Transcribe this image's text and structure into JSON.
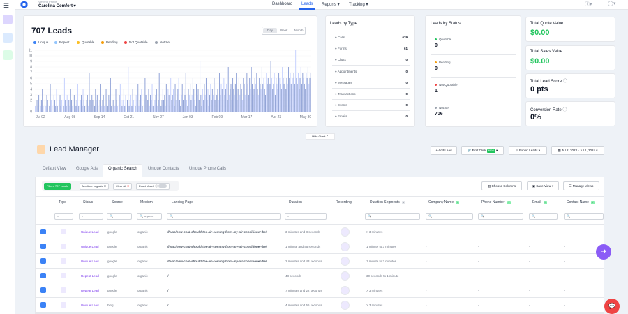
{
  "topbar": {
    "viewing_label": "Viewing Profile",
    "company": "Carolina Comfort",
    "nav": [
      "Dashboard",
      "Leads",
      "Reports",
      "Tracking"
    ],
    "active_nav": "Leads"
  },
  "leads_card": {
    "title": "707 Leads",
    "segments": [
      "Day",
      "Week",
      "Month"
    ],
    "legend": [
      {
        "label": "Unique",
        "color": "#3b82f6"
      },
      {
        "label": "Repeat",
        "color": "#93c5fd"
      },
      {
        "label": "Quotable",
        "color": "#fbbf24"
      },
      {
        "label": "Pending",
        "color": "#f59e0b"
      },
      {
        "label": "Not Quotable",
        "color": "#ef4444"
      },
      {
        "label": "Not Set",
        "color": "#9ca3af"
      }
    ]
  },
  "chart_data": {
    "type": "bar",
    "x_ticks": [
      "Jul 02",
      "Aug 08",
      "Sep 14",
      "Oct 21",
      "Nov 27",
      "Jan 03",
      "Feb 09",
      "Mar 17",
      "Apr 23",
      "May 30"
    ],
    "y_ticks": [
      "0",
      "1",
      "2",
      "3",
      "4",
      "5",
      "6",
      "7",
      "8",
      "9",
      "10",
      "11"
    ],
    "ylim": [
      0,
      11
    ],
    "series": [
      {
        "name": "Unique",
        "color": "#93a5d8"
      },
      {
        "name": "Repeat",
        "color": "#c7d2fe"
      }
    ],
    "values": [
      1,
      0,
      2,
      1,
      3,
      0,
      1,
      2,
      4,
      1,
      0,
      2,
      1,
      3,
      2,
      0,
      1,
      5,
      2,
      1,
      0,
      3,
      2,
      1,
      4,
      1,
      0,
      2,
      3,
      1,
      2,
      0,
      1,
      6,
      2,
      1,
      3,
      0,
      2,
      1,
      4,
      2,
      1,
      0,
      3,
      2,
      1,
      2,
      5,
      1,
      0,
      2,
      3,
      1,
      4,
      2,
      1,
      0,
      2,
      3,
      1,
      7,
      2,
      1,
      3,
      2,
      0,
      1,
      4,
      2,
      3,
      1,
      0,
      2,
      5,
      1,
      2,
      3,
      1,
      0,
      4,
      2,
      1,
      3,
      2,
      6,
      1,
      0,
      2,
      3,
      1,
      4,
      2,
      1,
      0,
      3,
      5,
      2,
      1,
      2,
      4,
      1,
      3,
      0,
      2,
      8,
      1,
      2,
      3,
      1,
      4,
      2,
      0,
      1,
      3,
      2,
      5,
      1,
      2,
      3,
      4,
      1,
      0,
      2,
      6,
      3,
      1,
      2,
      4,
      1,
      3,
      2,
      5,
      1,
      0,
      2,
      3,
      4,
      1,
      2,
      7,
      3,
      1,
      2,
      4,
      2,
      3,
      1,
      5,
      2,
      4,
      3,
      1,
      6,
      2,
      3,
      4,
      1,
      5,
      2,
      3,
      4,
      6,
      2,
      1,
      3,
      5,
      2,
      4,
      3,
      7,
      2,
      1,
      4,
      3,
      5,
      2,
      3,
      6,
      4,
      2,
      1,
      5,
      3,
      4,
      2,
      9,
      3,
      1,
      4,
      2,
      5,
      3,
      6,
      2,
      4,
      1,
      3,
      5,
      2,
      4,
      3,
      6,
      2,
      5,
      3,
      4,
      2,
      7,
      3,
      5,
      4,
      2,
      6,
      3,
      4,
      5,
      2,
      8,
      3,
      4,
      5,
      2,
      6,
      4,
      3,
      5,
      7,
      2,
      4,
      6,
      3,
      5,
      4,
      2,
      6,
      5,
      3,
      4,
      7,
      5,
      3,
      6,
      4,
      8,
      5,
      3,
      4,
      6,
      5,
      7,
      4,
      3,
      6,
      5,
      4,
      8,
      5,
      6,
      4,
      3,
      7,
      5,
      6,
      4,
      5,
      9,
      6,
      4,
      5,
      7,
      3,
      6,
      5,
      4,
      7,
      6,
      5,
      4,
      8,
      6,
      5,
      7,
      4,
      6,
      5,
      8,
      6,
      7,
      5,
      4,
      6,
      7,
      5,
      11,
      6,
      5,
      7,
      4,
      6,
      8,
      5,
      7,
      6,
      5,
      4,
      7,
      6,
      8,
      5,
      6,
      7
    ]
  },
  "leads_by_type": {
    "title": "Leads by Type",
    "rows": [
      {
        "label": "Calls",
        "value": "629"
      },
      {
        "label": "Forms",
        "value": "61"
      },
      {
        "label": "Chats",
        "value": "0"
      },
      {
        "label": "Appointments",
        "value": "0"
      },
      {
        "label": "Messages",
        "value": "0"
      },
      {
        "label": "Transactions",
        "value": "0"
      },
      {
        "label": "Events",
        "value": "0"
      },
      {
        "label": "Emails",
        "value": "0"
      }
    ]
  },
  "leads_by_status": {
    "title": "Leads by Status",
    "rows": [
      {
        "label": "Quotable",
        "value": "0",
        "color": "#22c55e"
      },
      {
        "label": "Pending",
        "value": "0",
        "color": "#f59e0b"
      },
      {
        "label": "Not Quotable",
        "value": "1",
        "color": "#ef4444"
      },
      {
        "label": "Not Set",
        "value": "706",
        "color": "#9ca3af"
      }
    ]
  },
  "summary": {
    "quote_label": "Total Quote Value",
    "quote_value": "$0.00",
    "sales_label": "Total Sales Value",
    "sales_value": "$0.00",
    "score_label": "Total Lead Score",
    "score_value": "0 pts",
    "conv_label": "Conversion Rate",
    "conv_value": "0%",
    "green": "#22c55e"
  },
  "hide_chart": "Hide Chart",
  "lead_manager": {
    "title": "Lead Manager",
    "add_lead": "+ Add Lead",
    "first_click": "First Click",
    "first_click_badge": "NEW",
    "export": "Export Leads",
    "date_range": "Jul 2, 2023 - Jul 1, 2024",
    "tabs": [
      "Default View",
      "Google Ads",
      "Organic Search",
      "Unique Contacts",
      "Unique Phone Calls"
    ],
    "active_tab": "Organic Search",
    "filters_label": "Filters",
    "filters_count": "707 Leads",
    "chip_medium": "Medium: organic",
    "chip_clear": "Clear All",
    "chip_exact": "Exact Match",
    "choose_columns": "Choose Columns",
    "save_view": "Save View",
    "manage_views": "Manage Views"
  },
  "table": {
    "columns": [
      "Type",
      "Status",
      "Source",
      "Medium",
      "Landing Page",
      "Duration",
      "Recording",
      "Duration Segments",
      "Company Name",
      "Phone Number",
      "Email",
      "Contact Name"
    ],
    "medium_filter": "organic",
    "rows": [
      {
        "status": "Unique Lead",
        "source": "google",
        "medium": "organic",
        "landing": "/hvac/how-cold-should-the-air-coming-from-my-air-conditioner-be/",
        "duration": "3 minutes and 8 seconds",
        "segment": "> 3 minutes",
        "company": "-",
        "phone": "-",
        "email": "-",
        "contact": "-"
      },
      {
        "status": "Unique Lead",
        "source": "google",
        "medium": "organic",
        "landing": "/hvac/how-cold-should-the-air-coming-from-my-air-conditioner-be/",
        "duration": "1 minute and 45 seconds",
        "segment": "1 minute to 3 minutes",
        "company": "-",
        "phone": "-",
        "email": "-",
        "contact": "-"
      },
      {
        "status": "Unique Lead",
        "source": "google",
        "medium": "organic",
        "landing": "/hvac/how-cold-should-the-air-coming-from-my-air-conditioner-be/",
        "duration": "2 minutes and 43 seconds",
        "segment": "1 minute to 3 minutes",
        "company": "-",
        "phone": "-",
        "email": "-",
        "contact": "-"
      },
      {
        "status": "Repeat Lead",
        "source": "google",
        "medium": "organic",
        "landing": "/",
        "duration": "48 seconds",
        "segment": "30 seconds to 1 minute",
        "company": "-",
        "phone": "-",
        "email": "-",
        "contact": "-"
      },
      {
        "status": "Repeat Lead",
        "source": "google",
        "medium": "organic",
        "landing": "/",
        "duration": "7 minutes and 22 seconds",
        "segment": "> 3 minutes",
        "company": "-",
        "phone": "-",
        "email": "-",
        "contact": "-"
      },
      {
        "status": "Unique Lead",
        "source": "bing",
        "medium": "organic",
        "landing": "/",
        "duration": "4 minutes and 56 seconds",
        "segment": "> 3 minutes",
        "company": "-",
        "phone": "-",
        "email": "-",
        "contact": "-"
      }
    ]
  }
}
